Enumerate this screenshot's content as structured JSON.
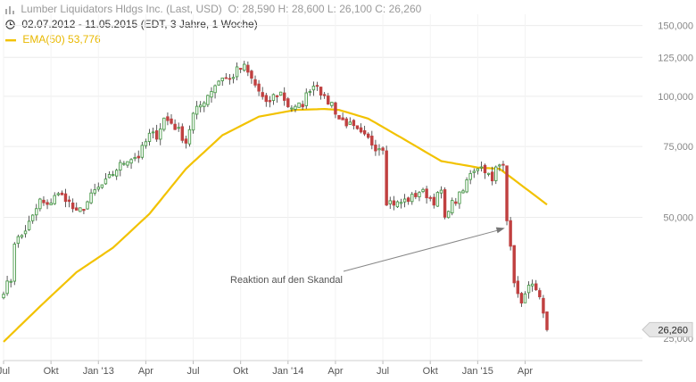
{
  "header": {
    "title_prefix": "Lumber Liquidators Hldgs Inc.",
    "title_mode": "(Last, USD)",
    "ohlc": "O: 28,590  H: 28,600  L: 26,100  C: 26,260",
    "range": "02.07.2012 - 11.05.2015 (EDT, 3 Jahre, 1 Woche)",
    "ema_label": "EMA(50)",
    "ema_value": "53,776",
    "colors": {
      "ema": "#f2c200",
      "up": "#4a9a4a",
      "down": "#c04040"
    }
  },
  "chart_data": {
    "type": "candlestick",
    "y_scale": "log",
    "ylim": [
      22000,
      160000
    ],
    "y_ticks": [
      {
        "value": 150000,
        "label": "150,000"
      },
      {
        "value": 125000,
        "label": "125,000"
      },
      {
        "value": 100000,
        "label": "100,000"
      },
      {
        "value": 75000,
        "label": "75,000"
      },
      {
        "value": 50000,
        "label": "50,000"
      },
      {
        "value": 25000,
        "label": "25,000"
      }
    ],
    "x_ticks": [
      {
        "week": 0,
        "label": "Jul"
      },
      {
        "week": 13,
        "label": "Okt"
      },
      {
        "week": 26,
        "label": "Jan '13"
      },
      {
        "week": 39,
        "label": "Apr"
      },
      {
        "week": 52,
        "label": "Jul"
      },
      {
        "week": 65,
        "label": "Okt"
      },
      {
        "week": 78,
        "label": "Jan '14"
      },
      {
        "week": 91,
        "label": "Apr"
      },
      {
        "week": 104,
        "label": "Jul"
      },
      {
        "week": 117,
        "label": "Okt"
      },
      {
        "week": 130,
        "label": "Jan '15"
      },
      {
        "week": 143,
        "label": "Apr"
      }
    ],
    "weeks_total": 149,
    "close_anchors": [
      [
        0,
        33000
      ],
      [
        2,
        35000
      ],
      [
        3,
        43500
      ],
      [
        5,
        45000
      ],
      [
        8,
        50000
      ],
      [
        10,
        55000
      ],
      [
        12,
        53000
      ],
      [
        14,
        57000
      ],
      [
        17,
        56000
      ],
      [
        20,
        51000
      ],
      [
        22,
        53000
      ],
      [
        25,
        58000
      ],
      [
        28,
        61000
      ],
      [
        31,
        66000
      ],
      [
        34,
        70000
      ],
      [
        37,
        71000
      ],
      [
        40,
        80000
      ],
      [
        42,
        80000
      ],
      [
        44,
        88000
      ],
      [
        46,
        86000
      ],
      [
        48,
        82000
      ],
      [
        50,
        77000
      ],
      [
        52,
        90000
      ],
      [
        54,
        95000
      ],
      [
        56,
        101000
      ],
      [
        58,
        107000
      ],
      [
        60,
        112000
      ],
      [
        62,
        110000
      ],
      [
        64,
        116000
      ],
      [
        66,
        118000
      ],
      [
        70,
        103000
      ],
      [
        72,
        95000
      ],
      [
        74,
        100000
      ],
      [
        76,
        102000
      ],
      [
        78,
        95000
      ],
      [
        80,
        93000
      ],
      [
        82,
        96000
      ],
      [
        84,
        105000
      ],
      [
        86,
        108000
      ],
      [
        88,
        98000
      ],
      [
        90,
        96000
      ],
      [
        92,
        88000
      ],
      [
        94,
        86000
      ],
      [
        96,
        83000
      ],
      [
        98,
        80000
      ],
      [
        100,
        78000
      ],
      [
        102,
        75000
      ],
      [
        104,
        75000
      ],
      [
        105,
        55000
      ],
      [
        108,
        54000
      ],
      [
        110,
        55000
      ],
      [
        112,
        56000
      ],
      [
        114,
        58000
      ],
      [
        116,
        57000
      ],
      [
        118,
        55000
      ],
      [
        120,
        58000
      ],
      [
        121,
        49000
      ],
      [
        122,
        53000
      ],
      [
        124,
        55000
      ],
      [
        126,
        58000
      ],
      [
        128,
        65000
      ],
      [
        130,
        67000
      ],
      [
        132,
        66000
      ],
      [
        134,
        61000
      ],
      [
        135,
        66000
      ],
      [
        137,
        69000
      ],
      [
        138,
        50000
      ],
      [
        139,
        41500
      ],
      [
        140,
        35000
      ],
      [
        141,
        32000
      ],
      [
        142,
        30000
      ],
      [
        143,
        33000
      ],
      [
        145,
        33500
      ],
      [
        147,
        31000
      ],
      [
        148,
        28500
      ],
      [
        149,
        26260
      ]
    ],
    "ema_anchors": [
      [
        0,
        24500
      ],
      [
        10,
        30000
      ],
      [
        20,
        36500
      ],
      [
        30,
        42000
      ],
      [
        40,
        51000
      ],
      [
        50,
        66000
      ],
      [
        60,
        80000
      ],
      [
        70,
        89000
      ],
      [
        80,
        92500
      ],
      [
        88,
        93000
      ],
      [
        92,
        92500
      ],
      [
        100,
        88000
      ],
      [
        110,
        78000
      ],
      [
        120,
        69000
      ],
      [
        130,
        66500
      ],
      [
        136,
        66000
      ],
      [
        140,
        62000
      ],
      [
        149,
        53776
      ]
    ],
    "last_value": 26260,
    "last_label": "26,260",
    "annotation": {
      "text": "Reaktion auf den Skandal",
      "arrow_to_week": 135,
      "arrow_to_value": 47000
    }
  }
}
